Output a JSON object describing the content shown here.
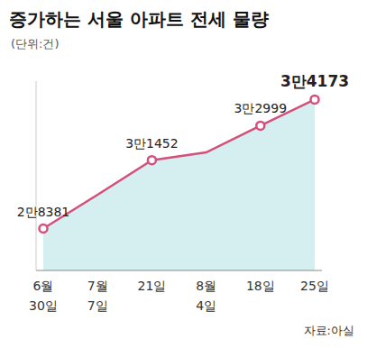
{
  "chart_data": {
    "type": "area",
    "title": "증가하는 서울 아파트 전세 물량",
    "subtitle": "(단위:건)",
    "annotation": "자료:아실",
    "categories": [
      "6월 30일",
      "7월 7일",
      "21일",
      "8월 4일",
      "18일",
      "25일"
    ],
    "values": [
      28381,
      29900,
      31452,
      31800,
      32999,
      34173
    ],
    "value_labels": [
      "2만8381",
      null,
      "3만1452",
      null,
      "3만2999",
      "3만4173"
    ],
    "data_labels": true,
    "color": "#d3507a",
    "marker": "circle",
    "ylim": [
      26500,
      35000
    ],
    "tick_labels": false,
    "grid": false
  }
}
